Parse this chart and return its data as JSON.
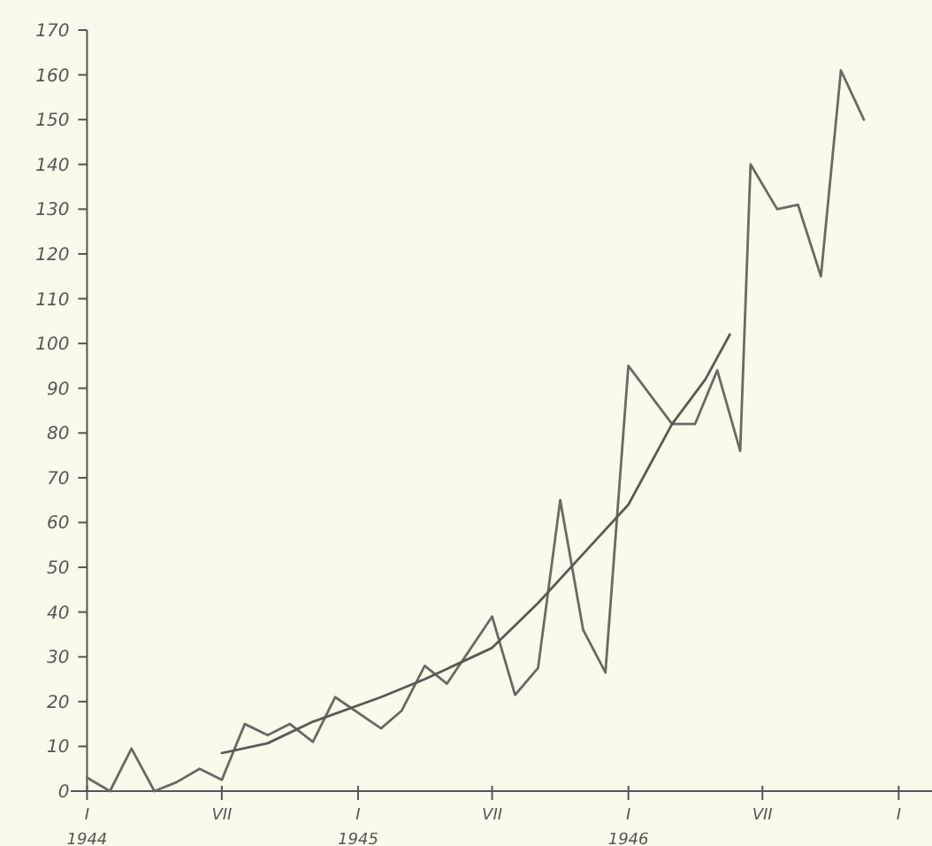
{
  "chart_data": {
    "type": "line",
    "xlim": [
      "1943-12-10",
      "1947-02-15"
    ],
    "ylim": [
      0,
      170
    ],
    "xticks": [
      {
        "value": "1944-01",
        "label": "I\n1944"
      },
      {
        "value": "1944-07",
        "label": "VII"
      },
      {
        "value": "1945-01",
        "label": "I\n1945"
      },
      {
        "value": "1945-07",
        "label": "VII"
      },
      {
        "value": "1946-01",
        "label": "I\n1946"
      },
      {
        "value": "1946-07",
        "label": "VII"
      },
      {
        "value": "1947-01",
        "label": "I"
      }
    ],
    "yticks": [
      0,
      10,
      20,
      30,
      40,
      50,
      60,
      70,
      80,
      90,
      100,
      110,
      120,
      130,
      140,
      150,
      160,
      170
    ],
    "marker": "none",
    "line_style": "solid",
    "series": [
      {
        "color": "#6a6a64",
        "x": [
          "1944-01",
          "1944-02",
          "1944-03",
          "1944-04",
          "1944-05",
          "1944-06",
          "1944-07",
          "1944-08",
          "1944-09",
          "1944-10",
          "1944-11",
          "1944-12",
          "1945-02",
          "1945-03",
          "1945-04",
          "1945-05",
          "1945-07",
          "1945-08",
          "1945-09",
          "1945-10",
          "1945-11",
          "1945-12",
          "1946-01",
          "1946-03",
          "1946-04",
          "1946-05",
          "1946-06",
          "1946-06-15",
          "1946-07-21",
          "1946-08-18",
          "1946-09-18",
          "1946-10-15",
          "1946-11-15"
        ],
        "values": [
          3,
          0,
          9.5,
          0,
          2,
          5,
          2.5,
          15,
          12.5,
          15,
          11,
          21,
          14,
          18,
          28,
          24,
          39,
          21.5,
          27.5,
          65,
          36,
          26.5,
          95,
          82,
          82,
          94,
          76,
          140,
          130,
          131,
          115,
          161,
          150
        ]
      },
      {
        "color": "#5a5a55",
        "x": [
          "1944-07",
          "1944-09",
          "1944-11",
          "1945-02",
          "1945-04",
          "1945-07",
          "1945-09",
          "1945-11",
          "1946-01",
          "1946-03",
          "1946-04-15",
          "1946-05-18"
        ],
        "values": [
          8.5,
          10.7,
          15.5,
          21,
          25,
          32,
          42,
          53,
          64,
          82,
          92,
          102
        ]
      }
    ]
  }
}
